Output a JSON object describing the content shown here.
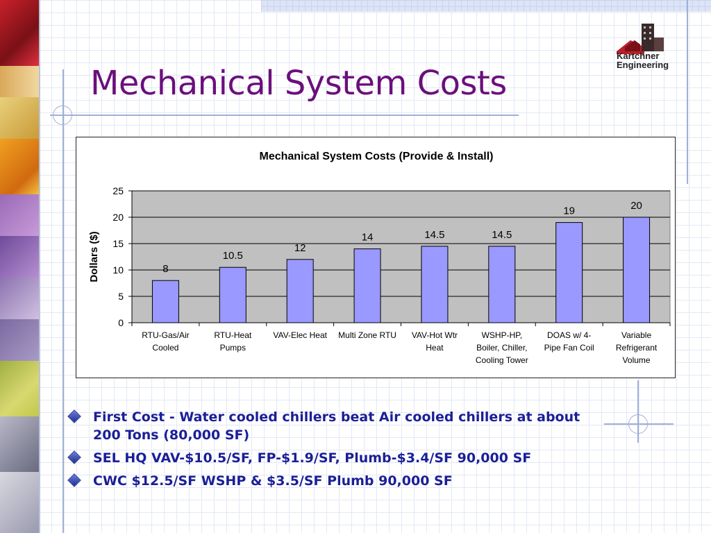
{
  "slide": {
    "title": "Mechanical System Costs"
  },
  "logo": {
    "line1": "Kartchner",
    "line2": "Engineering"
  },
  "colors": {
    "title": "#6b0f7c",
    "bullet_text": "#1a1f96",
    "bar_fill": "#9999ff",
    "plot_bg": "#c0c0c0"
  },
  "bullets": [
    "First Cost - Water cooled chillers beat Air cooled chillers at about 200 Tons (80,000 SF)",
    "SEL HQ VAV-$10.5/SF, FP-$1.9/SF, Plumb-$3.4/SF 90,000 SF",
    "CWC $12.5/SF WSHP & $3.5/SF Plumb 90,000 SF"
  ],
  "chart_data": {
    "type": "bar",
    "title": "Mechanical System Costs (Provide & Install)",
    "xlabel": "",
    "ylabel": "Dollars ($)",
    "ylim": [
      0,
      25
    ],
    "yticks": [
      0,
      5,
      10,
      15,
      20,
      25
    ],
    "grid": true,
    "legend": "none",
    "categories": [
      [
        "RTU-Gas/Air",
        "Cooled"
      ],
      [
        "RTU-Heat",
        "Pumps"
      ],
      [
        "VAV-Elec Heat"
      ],
      [
        "Multi Zone RTU"
      ],
      [
        "VAV-Hot Wtr",
        "Heat"
      ],
      [
        "WSHP-HP,",
        "Boiler, Chiller,",
        "Cooling Tower"
      ],
      [
        "DOAS w/ 4-",
        "Pipe Fan Coil"
      ],
      [
        "Variable",
        "Refrigerant",
        "Volume"
      ]
    ],
    "values": [
      8,
      10.5,
      12,
      14,
      14.5,
      14.5,
      19,
      20
    ],
    "data_labels": [
      "8",
      "10.5",
      "12",
      "14",
      "14.5",
      "14.5",
      "19",
      "20"
    ]
  }
}
